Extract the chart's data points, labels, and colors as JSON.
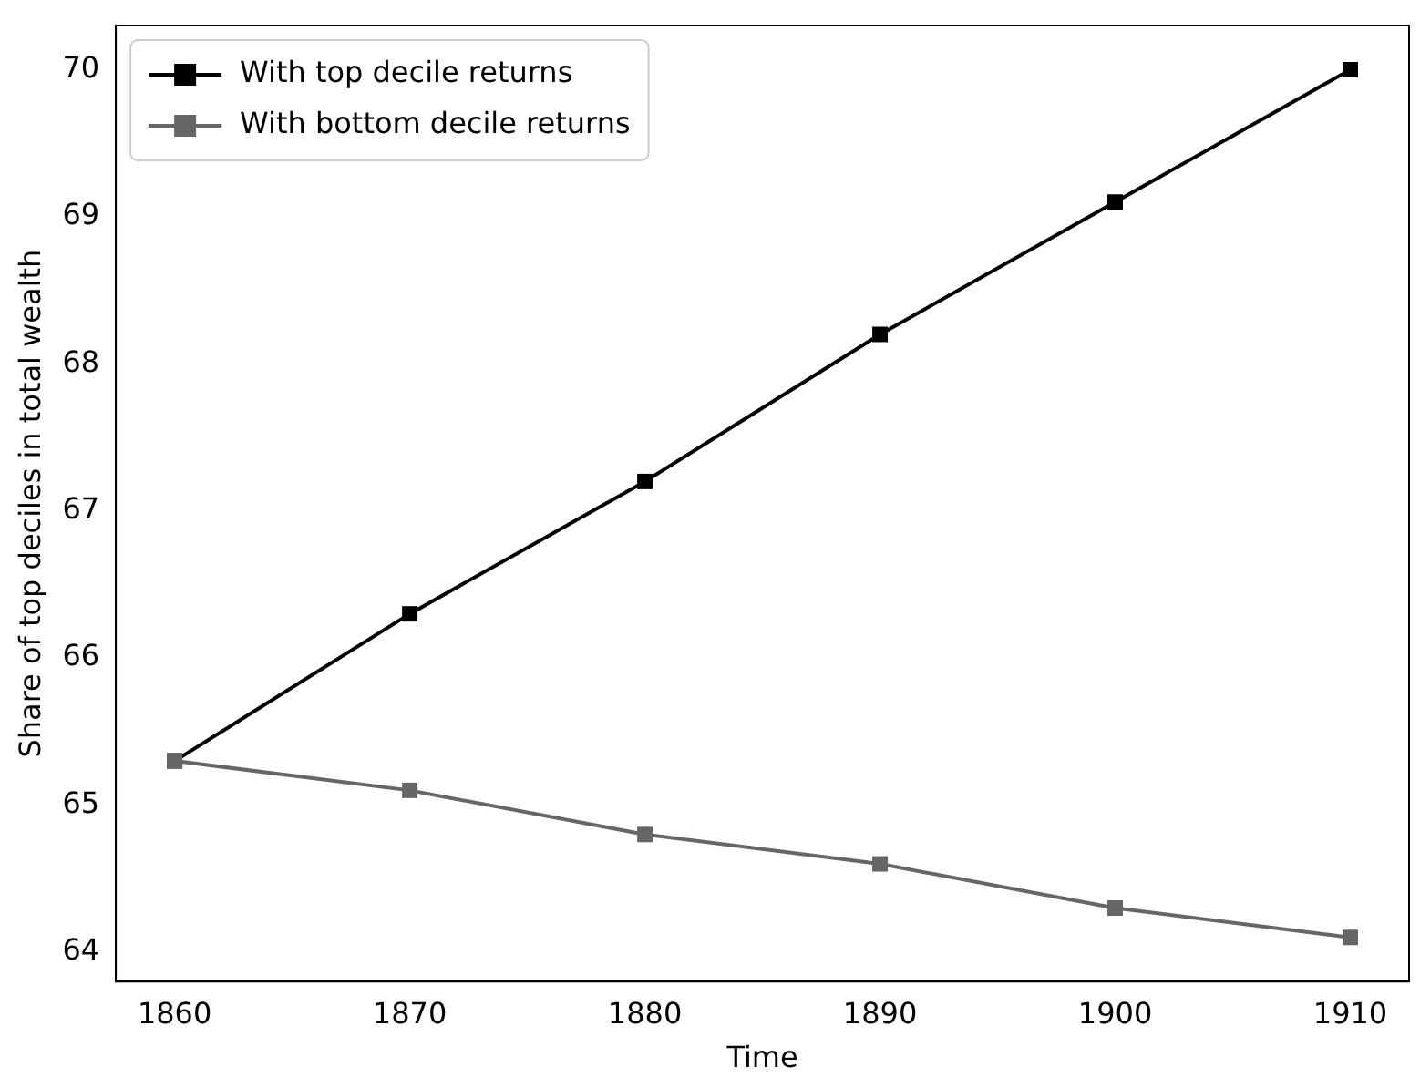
{
  "chart_data": {
    "type": "line",
    "xlabel": "Time",
    "ylabel": "Share of top deciles in total wealth",
    "x": [
      1860,
      1870,
      1880,
      1890,
      1900,
      1910
    ],
    "series": [
      {
        "name": "With top decile returns",
        "color": "#000000",
        "values": [
          65.3,
          66.3,
          67.2,
          68.2,
          69.1,
          70.0
        ]
      },
      {
        "name": "With bottom decile returns",
        "color": "#666666",
        "values": [
          65.3,
          65.1,
          64.8,
          64.6,
          64.3,
          64.1
        ]
      }
    ],
    "xlim": [
      1857.5,
      1912.5
    ],
    "xticks": [
      1860,
      1870,
      1880,
      1890,
      1900,
      1910
    ],
    "ylim": [
      63.8,
      70.3
    ],
    "yticks": [
      64,
      65,
      66,
      67,
      68,
      69,
      70
    ],
    "grid": false,
    "legend": "top left",
    "marker": "square",
    "line_style": "solid"
  }
}
